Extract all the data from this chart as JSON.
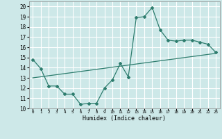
{
  "xlabel": "Humidex (Indice chaleur)",
  "bg_color": "#cde8e8",
  "grid_color": "#ffffff",
  "line_color": "#2e7d6e",
  "xlim": [
    -0.5,
    23.5
  ],
  "ylim": [
    10,
    20.5
  ],
  "x_ticks": [
    0,
    1,
    2,
    3,
    4,
    5,
    6,
    7,
    8,
    9,
    10,
    11,
    12,
    13,
    14,
    15,
    16,
    17,
    18,
    19,
    20,
    21,
    22,
    23
  ],
  "y_ticks": [
    10,
    11,
    12,
    13,
    14,
    15,
    16,
    17,
    18,
    19,
    20
  ],
  "line1_x": [
    0,
    1,
    2,
    3,
    4,
    5,
    6,
    7,
    8,
    9,
    10,
    11,
    12,
    13,
    14,
    15,
    16,
    17,
    18,
    19,
    20,
    21,
    22,
    23
  ],
  "line1_y": [
    14.8,
    13.9,
    12.2,
    12.2,
    11.4,
    11.4,
    10.4,
    10.5,
    10.5,
    12.0,
    12.8,
    14.4,
    13.1,
    18.9,
    19.0,
    19.9,
    17.7,
    16.7,
    16.6,
    16.7,
    16.7,
    16.5,
    16.3,
    15.5
  ],
  "line2_x": [
    0,
    23
  ],
  "line2_y": [
    13.0,
    15.4
  ]
}
